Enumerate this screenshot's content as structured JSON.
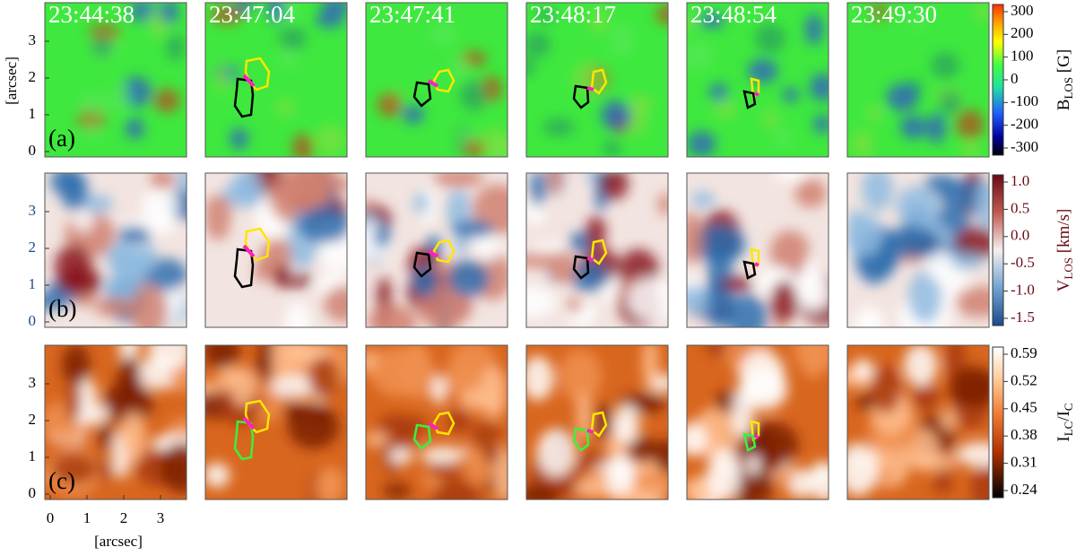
{
  "timestamps": [
    "23:44:38",
    "23:47:04",
    "23:47:41",
    "23:48:17",
    "23:48:54",
    "23:49:30"
  ],
  "rows": [
    {
      "label": "(a)",
      "colorbar": {
        "title_parts": [
          "B",
          "LOS",
          " [G]"
        ],
        "ticks": [
          "300",
          "200",
          "100",
          "0",
          "-100",
          "-200",
          "-300"
        ]
      }
    },
    {
      "label": "(b)",
      "colorbar": {
        "title_parts": [
          "V",
          "LOS",
          " [km/s]"
        ],
        "ticks": [
          "1.0",
          "0.5",
          "0.0",
          "-0.5",
          "-1.0",
          "-1.5"
        ]
      }
    },
    {
      "label": "(c)",
      "colorbar": {
        "title_parts": [
          "I",
          "LC",
          "/I",
          "C"
        ],
        "ticks": [
          "0.59",
          "0.52",
          "0.45",
          "0.38",
          "0.31",
          "0.24"
        ]
      }
    }
  ],
  "y_axis": {
    "label": "[arcsec]",
    "ticks": [
      "0",
      "1",
      "2",
      "3"
    ]
  },
  "x_axis": {
    "label": "[arcsec]",
    "ticks": [
      "0",
      "1",
      "2",
      "3"
    ]
  }
}
